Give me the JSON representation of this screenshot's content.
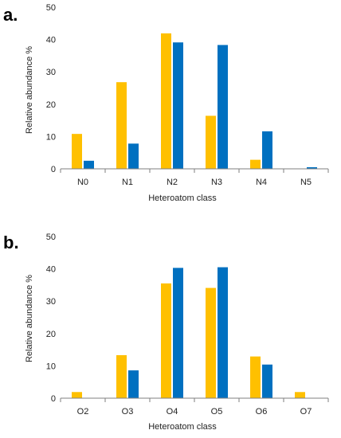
{
  "colors": {
    "series_a": "#FFC000",
    "series_b": "#0070C0",
    "axis": "#7f7f7f"
  },
  "chart_data": [
    {
      "type": "bar",
      "panel_label": "a.",
      "categories": [
        "N0",
        "N1",
        "N2",
        "N3",
        "N4",
        "N5"
      ],
      "series": [
        {
          "values": [
            10.8,
            26.8,
            41.9,
            16.4,
            2.8,
            0.1
          ],
          "color": "#FFC000"
        },
        {
          "values": [
            2.5,
            7.8,
            39.1,
            38.3,
            11.6,
            0.5
          ],
          "color": "#0070C0"
        }
      ],
      "xlabel": "Heteroatom class",
      "ylabel": "Relative abundance %",
      "ylim": [
        0,
        50
      ],
      "yticks": [
        "0",
        "10",
        "20",
        "30",
        "40",
        "50"
      ],
      "grid": false,
      "legend": "none"
    },
    {
      "type": "bar",
      "panel_label": "b.",
      "categories": [
        "O2",
        "O3",
        "O4",
        "O5",
        "O6",
        "O7"
      ],
      "series": [
        {
          "values": [
            1.9,
            13.3,
            35.5,
            34.1,
            12.9,
            1.9
          ],
          "color": "#FFC000"
        },
        {
          "values": [
            0,
            8.6,
            40.3,
            40.5,
            10.4,
            0
          ],
          "color": "#0070C0"
        }
      ],
      "xlabel": "Heteroatom class",
      "ylabel": "Relative abundance %",
      "ylim": [
        0,
        50
      ],
      "yticks": [
        "0",
        "10",
        "20",
        "30",
        "40",
        "50"
      ],
      "grid": false,
      "legend": "none"
    }
  ]
}
